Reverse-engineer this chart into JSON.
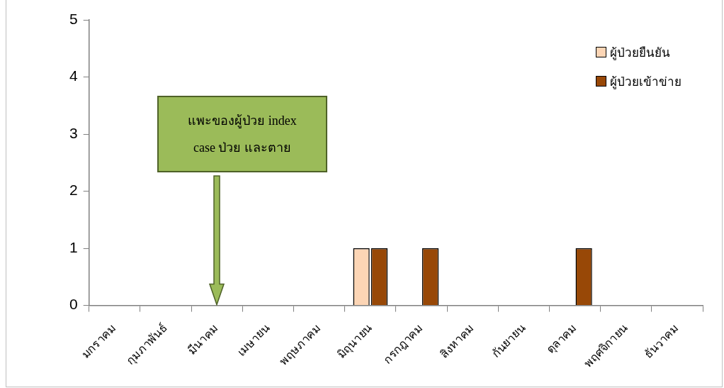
{
  "chart_data": {
    "type": "bar",
    "categories": [
      "มกราคม",
      "กุมภาพันธ์",
      "มีนาคม",
      "เมษายน",
      "พฤษภาคม",
      "มิถุนายน",
      "กรกฎาคม",
      "สิงหาคม",
      "กันยายน",
      "ตุลาคม",
      "พฤศจิกายน",
      "ธันวาคม"
    ],
    "series": [
      {
        "name": "ผู้ป่วยยืนยัน",
        "color": "#fcd5b5",
        "values": [
          0,
          0,
          0,
          0,
          0,
          1,
          0,
          0,
          0,
          0,
          0,
          0
        ]
      },
      {
        "name": "ผู้ป่วยเข้าข่าย",
        "color": "#984807",
        "values": [
          0,
          0,
          0,
          0,
          0,
          1,
          1,
          0,
          0,
          1,
          0,
          0
        ]
      }
    ],
    "ylim": [
      0,
      5
    ],
    "yticks": [
      0,
      1,
      2,
      3,
      4,
      5
    ],
    "grid": false,
    "legend": "top right",
    "annotations": [
      "แพะของผู้ป่วย index case ป่วย และตาย"
    ]
  }
}
